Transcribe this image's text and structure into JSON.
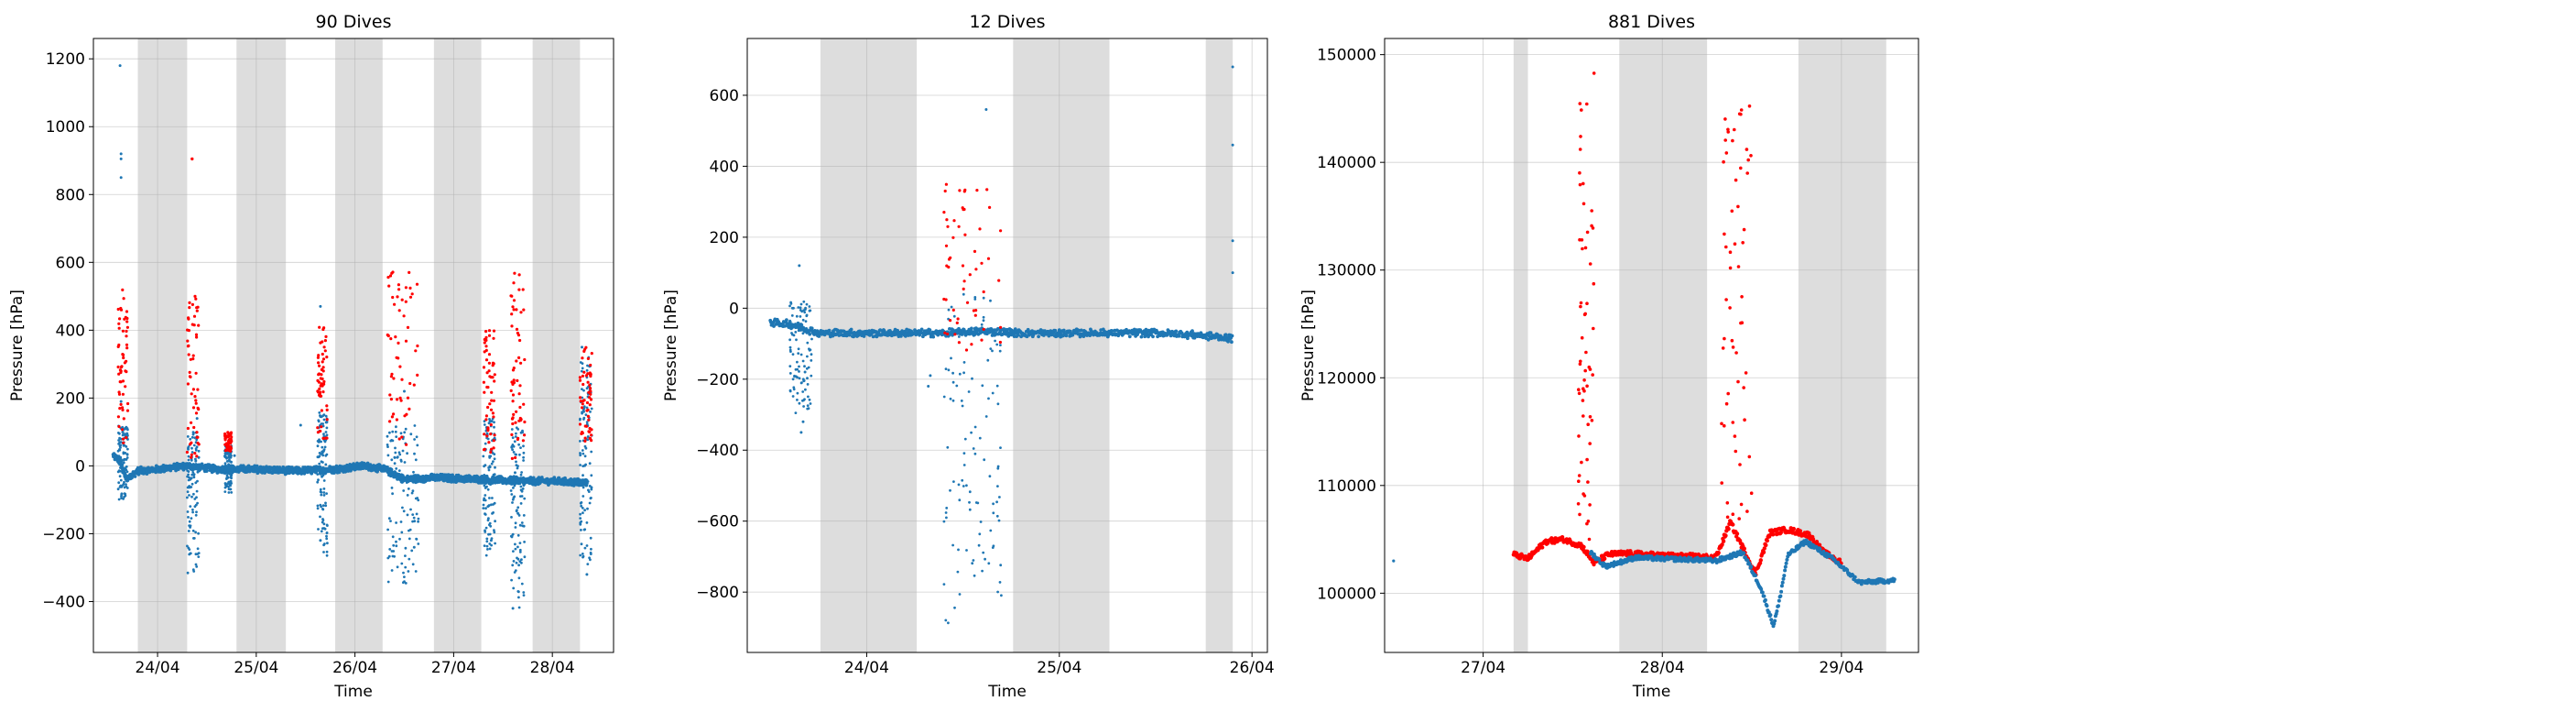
{
  "chart_data": [
    {
      "type": "scatter",
      "title": "90 Dives",
      "xlabel": "Time",
      "ylabel": "Pressure [hPa]",
      "grid": true,
      "xlim": [
        23.35,
        28.62
      ],
      "ylim": [
        -550,
        1260
      ],
      "xticks": [
        {
          "x": 24,
          "label": "24/04"
        },
        {
          "x": 25,
          "label": "25/04"
        },
        {
          "x": 26,
          "label": "26/04"
        },
        {
          "x": 27,
          "label": "27/04"
        },
        {
          "x": 28,
          "label": "28/04"
        }
      ],
      "yticks": [
        {
          "y": -400,
          "label": "−400"
        },
        {
          "y": -200,
          "label": "−200"
        },
        {
          "y": 0,
          "label": "0"
        },
        {
          "y": 200,
          "label": "200"
        },
        {
          "y": 400,
          "label": "400"
        },
        {
          "y": 600,
          "label": "600"
        },
        {
          "y": 800,
          "label": "800"
        },
        {
          "y": 1000,
          "label": "1000"
        },
        {
          "y": 1200,
          "label": "1200"
        }
      ],
      "shaded_intervals": [
        [
          23.8,
          24.3
        ],
        [
          24.8,
          25.3
        ],
        [
          25.8,
          26.28
        ],
        [
          26.8,
          27.28
        ],
        [
          27.8,
          28.28
        ]
      ],
      "series_colors": [
        "#1f77b4",
        "#ff0000"
      ],
      "baseline": [
        [
          23.55,
          30
        ],
        [
          23.62,
          15
        ],
        [
          23.68,
          -40
        ],
        [
          23.8,
          -15
        ],
        [
          24.0,
          -10
        ],
        [
          24.3,
          0
        ],
        [
          24.6,
          -10
        ],
        [
          25.0,
          -10
        ],
        [
          25.4,
          -15
        ],
        [
          25.8,
          -10
        ],
        [
          26.1,
          0
        ],
        [
          26.3,
          -10
        ],
        [
          26.5,
          -40
        ],
        [
          26.8,
          -35
        ],
        [
          27.3,
          -40
        ],
        [
          27.7,
          -45
        ],
        [
          28.0,
          -45
        ],
        [
          28.35,
          -50
        ]
      ],
      "blue_outliers": [
        [
          23.62,
          1180
        ],
        [
          23.63,
          920
        ],
        [
          23.63,
          905
        ],
        [
          23.63,
          850
        ],
        [
          23.63,
          190
        ],
        [
          24.4,
          140
        ],
        [
          24.78,
          30
        ],
        [
          25.45,
          120
        ],
        [
          25.65,
          470
        ],
        [
          25.65,
          -220
        ],
        [
          26.5,
          220
        ],
        [
          26.6,
          -240
        ],
        [
          27.38,
          -220
        ],
        [
          27.6,
          -420
        ],
        [
          28.3,
          350
        ],
        [
          28.35,
          -320
        ]
      ],
      "bursts": [
        {
          "x0": 23.6,
          "x1": 23.7,
          "blue": [
            -100,
            120
          ],
          "red": [
            60,
            520
          ]
        },
        {
          "x0": 24.3,
          "x1": 24.42,
          "blue": [
            -320,
            100
          ],
          "red": [
            10,
            500
          ]
        },
        {
          "x0": 24.68,
          "x1": 24.75,
          "blue": [
            -80,
            60
          ],
          "red": [
            40,
            100
          ]
        },
        {
          "x0": 25.62,
          "x1": 25.72,
          "blue": [
            -270,
            160
          ],
          "red": [
            80,
            410
          ]
        },
        {
          "x0": 26.32,
          "x1": 26.65,
          "blue": [
            -360,
            120
          ],
          "red": [
            60,
            590
          ]
        },
        {
          "x0": 27.3,
          "x1": 27.42,
          "blue": [
            -270,
            140
          ],
          "red": [
            30,
            400
          ]
        },
        {
          "x0": 27.58,
          "x1": 27.72,
          "blue": [
            -420,
            120
          ],
          "red": [
            20,
            570
          ]
        },
        {
          "x0": 28.28,
          "x1": 28.4,
          "blue": [
            -310,
            320
          ],
          "red": [
            60,
            350
          ]
        }
      ],
      "red_outliers": [
        [
          24.35,
          905
        ]
      ]
    },
    {
      "type": "scatter",
      "title": "12 Dives",
      "xlabel": "Time",
      "ylabel": "Pressure [hPa]",
      "grid": true,
      "xlim": [
        23.38,
        26.08
      ],
      "ylim": [
        -970,
        760
      ],
      "xticks": [
        {
          "x": 24,
          "label": "24/04"
        },
        {
          "x": 25,
          "label": "25/04"
        },
        {
          "x": 26,
          "label": "26/04"
        }
      ],
      "yticks": [
        {
          "y": -800,
          "label": "−800"
        },
        {
          "y": -600,
          "label": "−600"
        },
        {
          "y": -400,
          "label": "−400"
        },
        {
          "y": -200,
          "label": "−200"
        },
        {
          "y": 0,
          "label": "0"
        },
        {
          "y": 200,
          "label": "200"
        },
        {
          "y": 400,
          "label": "400"
        },
        {
          "y": 600,
          "label": "600"
        }
      ],
      "shaded_intervals": [
        [
          23.76,
          24.26
        ],
        [
          24.76,
          25.26
        ],
        [
          25.76,
          25.9
        ]
      ],
      "series_colors": [
        "#1f77b4",
        "#ff0000"
      ],
      "baseline": [
        [
          23.5,
          -40
        ],
        [
          23.6,
          -45
        ],
        [
          23.75,
          -70
        ],
        [
          24.0,
          -70
        ],
        [
          24.4,
          -70
        ],
        [
          24.6,
          -65
        ],
        [
          24.8,
          -70
        ],
        [
          25.2,
          -70
        ],
        [
          25.5,
          -70
        ],
        [
          25.7,
          -75
        ],
        [
          25.9,
          -85
        ]
      ],
      "blue_outliers": [
        [
          23.65,
          120
        ],
        [
          23.66,
          -350
        ],
        [
          23.67,
          -320
        ],
        [
          23.68,
          -180
        ],
        [
          24.62,
          560
        ],
        [
          25.9,
          680
        ],
        [
          25.9,
          460
        ],
        [
          25.9,
          190
        ],
        [
          25.9,
          100
        ],
        [
          24.32,
          -220
        ],
        [
          24.33,
          -190
        ]
      ],
      "bursts": [
        {
          "x0": 23.6,
          "x1": 23.72,
          "blue": [
            -300,
            20
          ],
          "red": [
            0,
            0
          ]
        },
        {
          "x0": 24.4,
          "x1": 24.7,
          "blue": [
            -890,
            40
          ],
          "red": [
            -120,
            350
          ]
        }
      ],
      "red_outliers": []
    },
    {
      "type": "scatter",
      "title": "881 Dives",
      "xlabel": "Time",
      "ylabel": "Pressure [hPa]",
      "grid": true,
      "xlim": [
        26.45,
        29.43
      ],
      "ylim": [
        94500,
        151500
      ],
      "xticks": [
        {
          "x": 27,
          "label": "27/04"
        },
        {
          "x": 28,
          "label": "28/04"
        },
        {
          "x": 29,
          "label": "29/04"
        }
      ],
      "yticks": [
        {
          "y": 100000,
          "label": "100000"
        },
        {
          "y": 110000,
          "label": "110000"
        },
        {
          "y": 120000,
          "label": "120000"
        },
        {
          "y": 130000,
          "label": "130000"
        },
        {
          "y": 140000,
          "label": "140000"
        },
        {
          "y": 150000,
          "label": "150000"
        }
      ],
      "shaded_intervals": [
        [
          27.17,
          27.25
        ],
        [
          27.76,
          28.25
        ],
        [
          28.76,
          29.25
        ]
      ],
      "series_colors": [
        "#1f77b4",
        "#ff0000"
      ],
      "baseline": [
        [
          26.5,
          103000
        ]
      ],
      "red_curve": [
        [
          27.17,
          103600
        ],
        [
          27.25,
          103200
        ],
        [
          27.35,
          104800
        ],
        [
          27.45,
          105000
        ],
        [
          27.55,
          104400
        ],
        [
          27.62,
          102800
        ],
        [
          27.7,
          103600
        ],
        [
          27.8,
          103700
        ],
        [
          28.0,
          103500
        ],
        [
          28.2,
          103400
        ],
        [
          28.3,
          103300
        ],
        [
          28.38,
          106600
        ],
        [
          28.45,
          104200
        ],
        [
          28.52,
          101800
        ],
        [
          28.6,
          105600
        ],
        [
          28.7,
          105900
        ],
        [
          28.82,
          105400
        ],
        [
          28.9,
          103800
        ],
        [
          29.0,
          102800
        ]
      ],
      "blue_curve": [
        [
          27.6,
          103800
        ],
        [
          27.68,
          102500
        ],
        [
          27.75,
          102800
        ],
        [
          27.85,
          103300
        ],
        [
          28.0,
          103200
        ],
        [
          28.2,
          103100
        ],
        [
          28.3,
          103000
        ],
        [
          28.45,
          103800
        ],
        [
          28.55,
          100500
        ],
        [
          28.62,
          97000
        ],
        [
          28.65,
          99000
        ],
        [
          28.7,
          103500
        ],
        [
          28.8,
          104800
        ],
        [
          28.95,
          103200
        ],
        [
          29.1,
          101000
        ],
        [
          29.3,
          101200
        ]
      ],
      "red_scatter_clusters": [
        {
          "x0": 27.53,
          "x1": 27.62,
          "y0": 105000,
          "y1": 149000
        },
        {
          "x0": 28.33,
          "x1": 28.5,
          "y0": 106000,
          "y1": 147000
        }
      ]
    }
  ]
}
